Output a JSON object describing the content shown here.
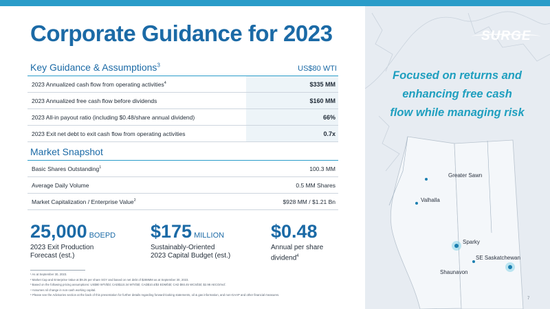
{
  "title": "Corporate Guidance for 2023",
  "logo_text": "SURGE",
  "tagline": [
    "Focused on returns and",
    "enhancing free cash",
    "flow while managing risk"
  ],
  "guidance": {
    "heading": "Key Guidance & Assumptions",
    "heading_sup": "3",
    "price_assumption": "US$80 WTI",
    "rows": [
      {
        "label": "2023 Annualized cash flow from operating activities",
        "sup": "4",
        "value": "$335 MM"
      },
      {
        "label": "2023 Annualized free cash flow before dividends",
        "sup": "",
        "value": "$160 MM"
      },
      {
        "label": "2023 All-in payout ratio (including $0.48/share annual dividend)",
        "sup": "",
        "value": "66%"
      },
      {
        "label": "2023 Exit net debt to exit cash flow from operating activities",
        "sup": "",
        "value": "0.7x"
      }
    ]
  },
  "market": {
    "heading": "Market Snapshot",
    "rows": [
      {
        "label": "Basic Shares Outstanding",
        "sup": "1",
        "value": "100.3 MM"
      },
      {
        "label": "Average Daily Volume",
        "sup": "",
        "value": "0.5 MM Shares"
      },
      {
        "label": "Market Capitalization / Enterprise Value",
        "sup": "2",
        "value": "$928 MM / $1.21 Bn"
      }
    ]
  },
  "stats": [
    {
      "value": "25,000",
      "unit": "BOEPD",
      "line1": "2023 Exit Production",
      "line2": "Forecast (est.)",
      "sup": ""
    },
    {
      "value": "$175",
      "unit": "MILLION",
      "line1": "Sustainably-Oriented",
      "line2": "2023 Capital Budget (est.)",
      "sup": ""
    },
    {
      "value": "$0.48",
      "unit": "",
      "line1": "Annual per share",
      "line2": "dividend",
      "sup": "4"
    }
  ],
  "map_labels": {
    "greater_sawn": "Greater Sawn",
    "valhalla": "Valhalla",
    "sparky": "Sparky",
    "se_sask": "SE Saskatchewan",
    "shaunavon": "Shaunavon"
  },
  "footnotes": [
    "¹ As at September 30, 2023.",
    "² Market Cap and Enterprise Value at $9.25 per share SGY and based on net debt of $288MM as at September 30, 2023.",
    "³ Based on the following pricing assumptions: US$80 WTI/bbl; CAD$110.34 WTI/bbl; CAD$10.4/$3 EDM/bbl; CAD $93.45 WCS/bbl; $2.98 AECO/mcf.",
    "⁴ Assumes nil change in non-cash working capital.",
    "⁵ Please see the Advisories section at the back of this presentation for further details regarding forward-looking statements, oil & gas information, and non-GAAP and other financial measures."
  ],
  "page_number": "7",
  "colors": {
    "brand_blue": "#1b6aa6",
    "accent_teal": "#1f9fbf",
    "top_bar": "#2a9cc9",
    "value_fill": "#edf4f8"
  }
}
